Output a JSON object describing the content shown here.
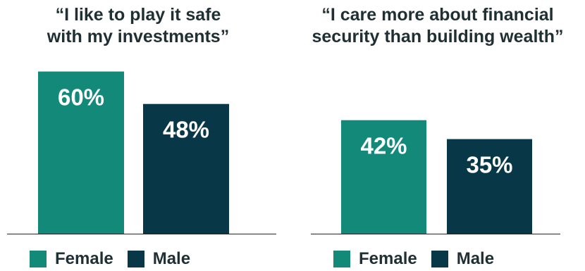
{
  "colors": {
    "female": "#13897a",
    "male": "#083848"
  },
  "chart_data": [
    {
      "type": "bar",
      "title": "“I like to play it safe\nwith my investments”",
      "categories": [
        "Female",
        "Male"
      ],
      "values": [
        60,
        48
      ],
      "value_labels": [
        "60%",
        "48%"
      ],
      "ylim": [
        0,
        66
      ]
    },
    {
      "type": "bar",
      "title": "“I care more about financial\nsecurity than building wealth”",
      "categories": [
        "Female",
        "Male"
      ],
      "values": [
        42,
        35
      ],
      "value_labels": [
        "42%",
        "35%"
      ],
      "ylim": [
        0,
        66
      ]
    }
  ],
  "legend": [
    {
      "label": "Female",
      "color": "#13897a"
    },
    {
      "label": "Male",
      "color": "#083848"
    }
  ]
}
